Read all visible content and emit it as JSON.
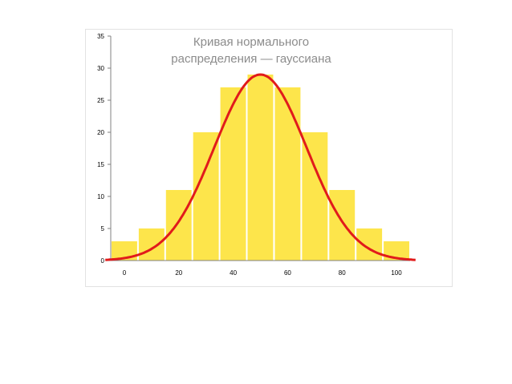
{
  "chart_data": {
    "type": "bar",
    "title_lines": [
      "Кривая нормального",
      "распределения — гауссиана"
    ],
    "xlabel": "",
    "ylabel": "",
    "x_ticks": [
      0,
      20,
      40,
      60,
      80,
      100
    ],
    "y_ticks": [
      0,
      5,
      10,
      15,
      20,
      25,
      30,
      35
    ],
    "xlim": [
      -5,
      105
    ],
    "ylim": [
      0,
      35
    ],
    "grid": false,
    "bars": {
      "name": "",
      "x": [
        0,
        10,
        20,
        30,
        40,
        50,
        60,
        70,
        80,
        90,
        100
      ],
      "values": [
        3,
        5,
        11,
        20,
        27,
        29,
        27,
        20,
        11,
        5,
        3
      ],
      "color": "#fde54b"
    },
    "curve": {
      "name": "",
      "type": "line",
      "mean": 50,
      "std_dev": 17,
      "peak": 29,
      "color": "#e11b1b"
    }
  }
}
